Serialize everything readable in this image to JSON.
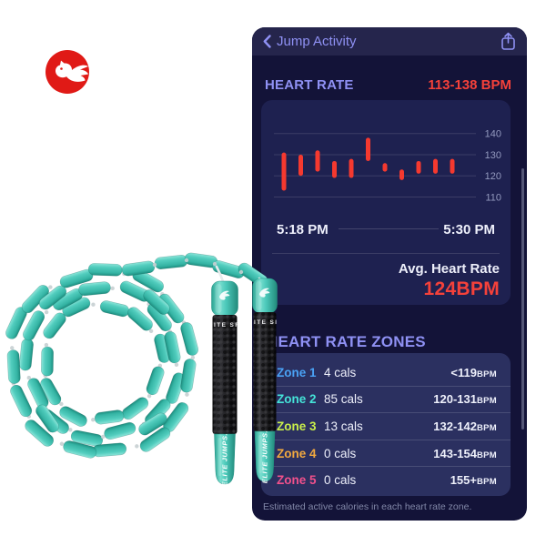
{
  "phone": {
    "nav": {
      "back_label": "Jump Activity"
    },
    "heart_rate": {
      "title": "HEART RATE",
      "range": "113-138 BPM",
      "avg_label": "Avg. Heart Rate",
      "avg_value": "124BPM"
    },
    "zones": {
      "title": "HEART RATE ZONES",
      "rows": [
        {
          "name": "Zone 1",
          "color": "#4aa2f5",
          "cals": "4 cals",
          "range": "<119",
          "unit": "BPM"
        },
        {
          "name": "Zone 2",
          "color": "#45e3d8",
          "cals": "85 cals",
          "range": "120-131",
          "unit": "BPM"
        },
        {
          "name": "Zone 3",
          "color": "#c9ef4b",
          "cals": "13 cals",
          "range": "132-142",
          "unit": "BPM"
        },
        {
          "name": "Zone 4",
          "color": "#f2a93f",
          "cals": "0 cals",
          "range": "143-154",
          "unit": "BPM"
        },
        {
          "name": "Zone 5",
          "color": "#f2518c",
          "cals": "0 cals",
          "range": "155+",
          "unit": "BPM"
        }
      ],
      "footnote": "Estimated active calories in each heart rate zone."
    }
  },
  "rope": {
    "grip_text": "ELITE SRS",
    "tip_text": "ELITE JUMPS.",
    "bead_color": "#4cc9ba"
  },
  "logo": {
    "name": "Elite Jumps pegasus mark",
    "color": "#e01a16"
  },
  "chart_data": {
    "type": "bar",
    "title": "Heart rate over workout (range bars)",
    "x_labels": [
      "5:18 PM",
      "5:30 PM"
    ],
    "y_ticks": [
      140,
      130,
      120,
      110
    ],
    "ylim": [
      110,
      146
    ],
    "unit": "BPM",
    "bar_color": "#f5392f",
    "bars": [
      {
        "min": 113,
        "max": 131
      },
      {
        "min": 120,
        "max": 130
      },
      {
        "min": 122,
        "max": 132
      },
      {
        "min": 119,
        "max": 127
      },
      {
        "min": 119,
        "max": 128
      },
      {
        "min": 127,
        "max": 138
      },
      {
        "min": 122,
        "max": 126
      },
      {
        "min": 118,
        "max": 123
      },
      {
        "min": 121,
        "max": 127
      },
      {
        "min": 121,
        "max": 128
      },
      {
        "min": 121,
        "max": 128
      }
    ]
  }
}
